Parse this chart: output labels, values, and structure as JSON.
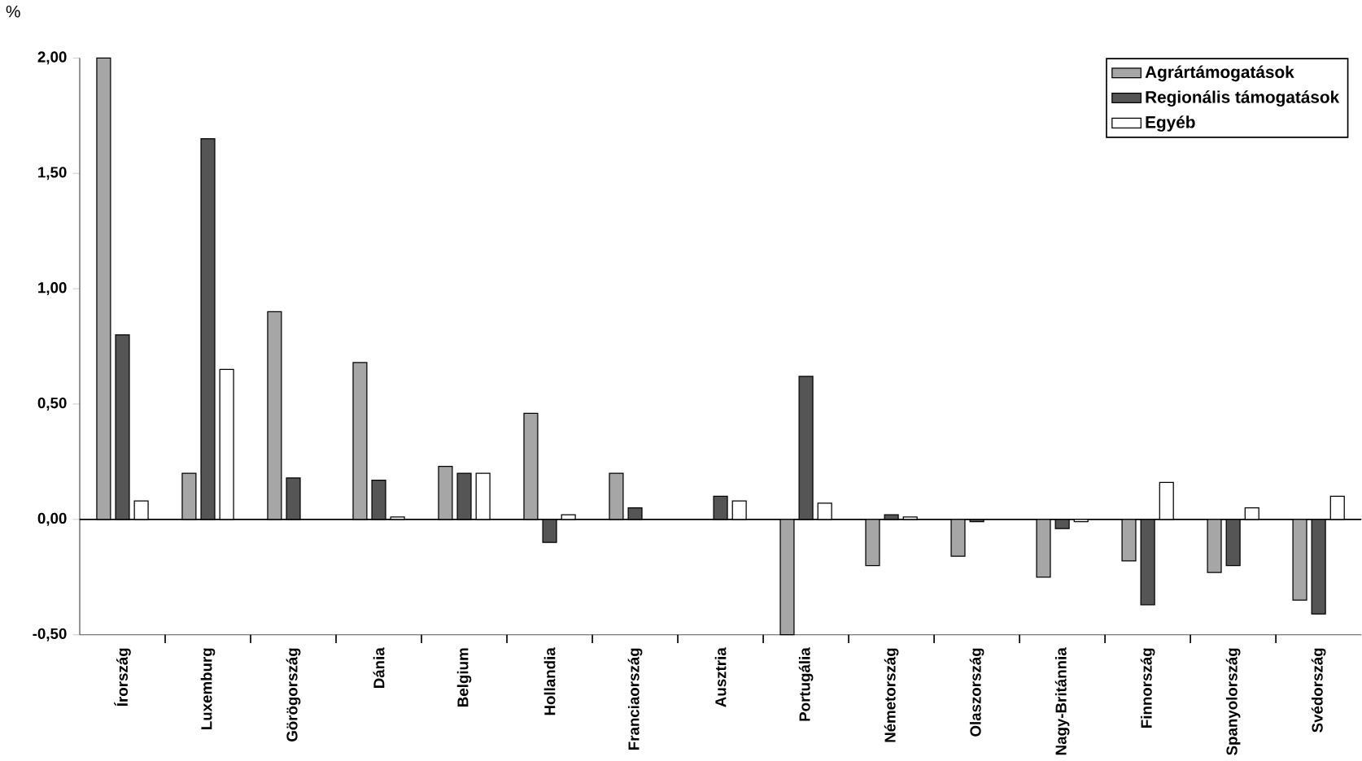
{
  "chart_data": {
    "type": "bar",
    "ylabel": "%",
    "categories": [
      "Írország",
      "Luxemburg",
      "Görögország",
      "Dánia",
      "Belgium",
      "Hollandia",
      "Franciaország",
      "Ausztria",
      "Portugália",
      "Németország",
      "Olaszország",
      "Nagy-Británnia",
      "Finnország",
      "Spanyolország",
      "Svédország"
    ],
    "series": [
      {
        "name": "Agrártámogatások",
        "color": "#a6a6a6",
        "values": [
          2.0,
          0.2,
          0.9,
          0.68,
          0.23,
          0.46,
          0.2,
          null,
          -0.5,
          -0.2,
          -0.16,
          -0.25,
          -0.18,
          -0.23,
          -0.35
        ]
      },
      {
        "name": "Regionális támogatások",
        "color": "#555555",
        "values": [
          0.8,
          1.65,
          0.18,
          0.17,
          0.2,
          -0.1,
          0.05,
          0.1,
          0.62,
          0.02,
          -0.01,
          -0.04,
          -0.37,
          -0.2,
          -0.41
        ]
      },
      {
        "name": "Egyéb",
        "color": "#ffffff",
        "values": [
          0.08,
          0.65,
          null,
          0.01,
          0.2,
          0.02,
          null,
          0.08,
          0.07,
          0.01,
          null,
          -0.01,
          0.16,
          0.05,
          0.1
        ]
      }
    ],
    "ylim": [
      -0.5,
      2.0
    ],
    "yticks": [
      {
        "value": -0.5,
        "label": "-0,50"
      },
      {
        "value": 0,
        "label": "0,00"
      },
      {
        "value": 0.5,
        "label": "0,50"
      },
      {
        "value": 1.0,
        "label": "1,00"
      },
      {
        "value": 1.5,
        "label": "1,50"
      },
      {
        "value": 2.0,
        "label": "2,00"
      }
    ],
    "ref_lines": [
      {
        "axis": "y",
        "value": 0,
        "color": "#000000"
      }
    ],
    "grid": false,
    "legend": "top right"
  }
}
